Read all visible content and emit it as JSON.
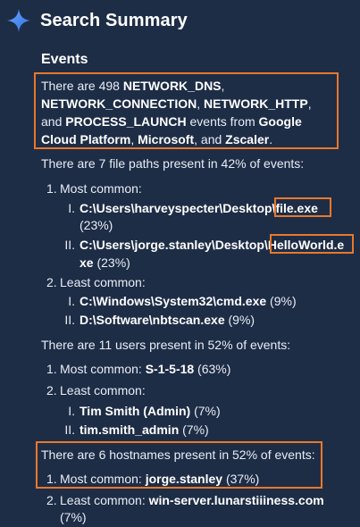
{
  "header": {
    "title": "Search Summary"
  },
  "events": {
    "section_title": "Events",
    "intro": {
      "prefix": "There are 498 ",
      "t1": "NETWORK_DNS",
      "sep1": ", ",
      "t2": "NETWORK_CONNECTION",
      "sep2": ", ",
      "t3": "NETWORK_HTTP",
      "sep3": ", and ",
      "t4": "PROCESS_LAUNCH",
      "mid": " events from ",
      "s1": "Google Cloud Platform",
      "sep4": ", ",
      "s2": "Microsoft",
      "sep5": ", and ",
      "s3": "Zscaler",
      "end": "."
    },
    "files": {
      "summary": "There are 7 file paths present in 42% of events:",
      "most_label": "Most common:",
      "most": [
        {
          "path": "C:\\Users\\harveyspecter\\Desktop\\",
          "file": "file.exe",
          "pct": "(23%)"
        },
        {
          "path": "C:\\Users\\jorge.stanley\\Desktop\\",
          "file_a": "HelloWorld.e",
          "file_b": "xe",
          "pct": " (23%)"
        }
      ],
      "least_label": "Least common:",
      "least": [
        {
          "path": "C:\\Windows\\System32\\cmd.exe",
          "pct": " (9%)"
        },
        {
          "path": "D:\\Software\\nbtscan.exe",
          "pct": " (9%)"
        }
      ]
    },
    "users": {
      "summary": "There are 11 users present in 52% of events:",
      "most_label": "Most common: ",
      "most_value": "S-1-5-18",
      "most_pct": " (63%)",
      "least_label": "Least common:",
      "least": [
        {
          "name": "Tim Smith (Admin)",
          "pct": " (7%)"
        },
        {
          "name": "tim.smith_admin",
          "pct": " (7%)"
        }
      ]
    },
    "hosts": {
      "summary": "There are 6 hostnames present in 52% of events:",
      "most_label": "Most common: ",
      "most_value": "jorge.stanley",
      "most_pct": " (37%)",
      "least_label": "Least common: ",
      "least_value": "win-server.lunarstiiiness.com",
      "least_pct": "(7%)"
    }
  },
  "markers": {
    "n1": "1.",
    "n2": "2.",
    "r1": "I.",
    "r2": "II."
  },
  "colors": {
    "background": "#1e2d46",
    "highlight_box": "#e8782b",
    "sparkle": "#3f8cff"
  }
}
